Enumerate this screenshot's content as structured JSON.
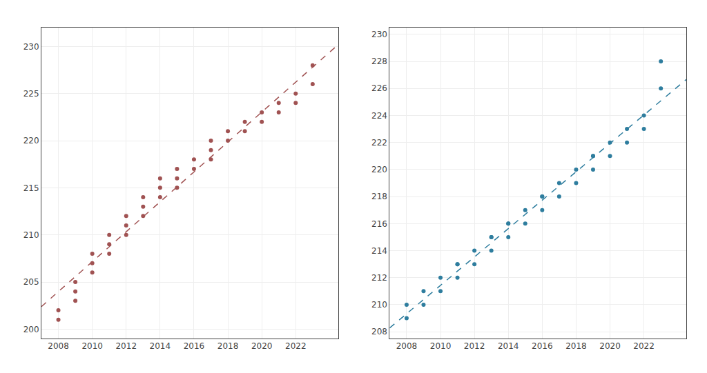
{
  "chart_data": [
    {
      "type": "scatter",
      "xlim": [
        2007.0,
        2024.5
      ],
      "ylim": [
        199,
        232
      ],
      "xticks": [
        2008,
        2010,
        2012,
        2014,
        2016,
        2018,
        2020,
        2022
      ],
      "yticks": [
        200,
        205,
        210,
        215,
        220,
        225,
        230
      ],
      "grid": true,
      "series": [
        {
          "type": "scatter",
          "color": "#a05252",
          "x": [
            2008,
            2008,
            2009,
            2009,
            2009,
            2010,
            2010,
            2010,
            2011,
            2011,
            2011,
            2012,
            2012,
            2012,
            2013,
            2013,
            2013,
            2014,
            2014,
            2014,
            2015,
            2015,
            2015,
            2016,
            2016,
            2017,
            2017,
            2017,
            2018,
            2018,
            2019,
            2019,
            2020,
            2020,
            2021,
            2021,
            2022,
            2022,
            2023,
            2023
          ],
          "values": [
            201,
            202,
            203,
            204,
            205,
            206,
            207,
            208,
            208,
            209,
            210,
            210,
            211,
            212,
            212,
            213,
            214,
            214,
            215,
            216,
            215,
            216,
            217,
            217,
            218,
            218,
            219,
            220,
            220,
            221,
            221,
            222,
            222,
            223,
            223,
            224,
            224,
            225,
            226,
            228
          ]
        },
        {
          "type": "line",
          "color": "#a05252",
          "line_style": "dashed",
          "x": [
            2007.0,
            2024.5
          ],
          "values": [
            202.3913,
            230.1786
          ]
        }
      ]
    },
    {
      "type": "scatter",
      "xlim": [
        2007.0,
        2024.5
      ],
      "ylim": [
        207.5,
        230.5
      ],
      "xticks": [
        2008,
        2010,
        2012,
        2014,
        2016,
        2018,
        2020,
        2022
      ],
      "yticks": [
        208,
        210,
        212,
        214,
        216,
        218,
        220,
        222,
        224,
        226,
        228,
        230
      ],
      "grid": true,
      "series": [
        {
          "type": "scatter",
          "color": "#2e7d9e",
          "x": [
            2008,
            2008,
            2009,
            2009,
            2010,
            2010,
            2011,
            2011,
            2011,
            2012,
            2012,
            2013,
            2013,
            2013,
            2014,
            2014,
            2014,
            2015,
            2015,
            2016,
            2016,
            2016,
            2017,
            2017,
            2018,
            2018,
            2019,
            2019,
            2019,
            2020,
            2020,
            2021,
            2021,
            2022,
            2022,
            2023,
            2023
          ],
          "values": [
            209,
            210,
            210,
            211,
            211,
            212,
            212,
            213,
            213,
            213,
            214,
            214,
            215,
            215,
            215,
            216,
            216,
            216,
            217,
            217,
            218,
            218,
            218,
            219,
            219,
            220,
            220,
            221,
            221,
            221,
            222,
            222,
            223,
            223,
            224,
            226,
            228
          ]
        },
        {
          "type": "line",
          "color": "#2e7d9e",
          "line_style": "dashed",
          "x": [
            2007.0,
            2024.5
          ],
          "values": [
            208.2823,
            226.6604
          ]
        }
      ]
    }
  ]
}
